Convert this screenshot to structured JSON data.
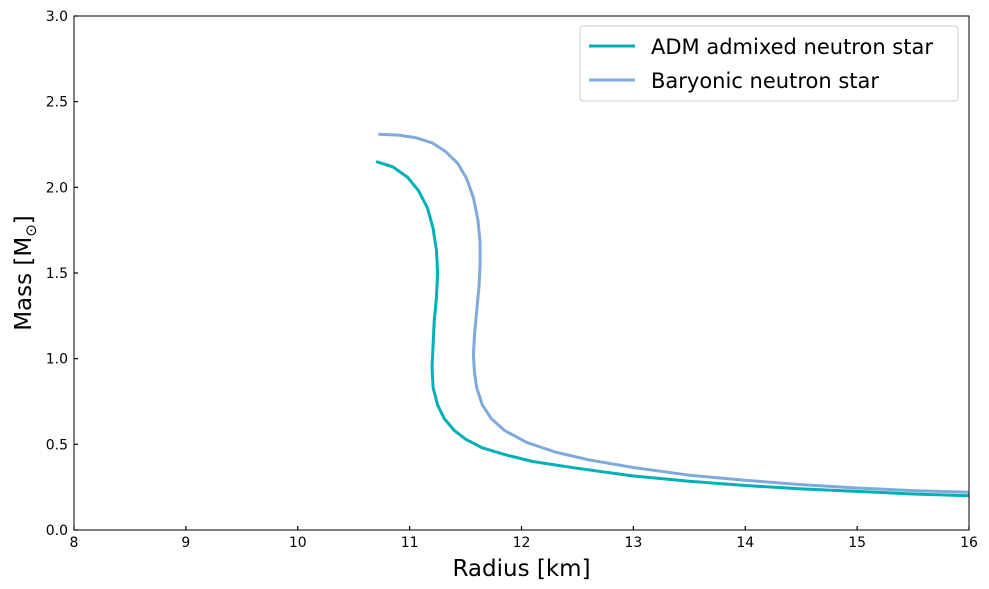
{
  "chart_data": {
    "type": "line",
    "title": "",
    "xlabel": "Radius [km]",
    "ylabel_text": "Mass [M",
    "ylabel_symbol": "⊙",
    "ylabel_close": "]",
    "xlim": [
      8,
      16
    ],
    "ylim": [
      0.0,
      3.0
    ],
    "x_ticks": [
      8,
      9,
      10,
      11,
      12,
      13,
      14,
      15,
      16
    ],
    "y_ticks": [
      0.0,
      0.5,
      1.0,
      1.5,
      2.0,
      2.5,
      3.0
    ],
    "x_tick_labels": [
      "8",
      "9",
      "10",
      "11",
      "12",
      "13",
      "14",
      "15",
      "16"
    ],
    "y_tick_labels": [
      "0.0",
      "0.5",
      "1.0",
      "1.5",
      "2.0",
      "2.5",
      "3.0"
    ],
    "grid": false,
    "legend_position": "top-right",
    "series": [
      {
        "name": "ADM admixed neutron star",
        "color": "#00b0b9",
        "points": [
          [
            10.7,
            2.15
          ],
          [
            10.85,
            2.12
          ],
          [
            10.98,
            2.06
          ],
          [
            11.08,
            1.98
          ],
          [
            11.16,
            1.88
          ],
          [
            11.21,
            1.76
          ],
          [
            11.24,
            1.63
          ],
          [
            11.25,
            1.5
          ],
          [
            11.24,
            1.36
          ],
          [
            11.22,
            1.22
          ],
          [
            11.21,
            1.08
          ],
          [
            11.2,
            0.95
          ],
          [
            11.21,
            0.83
          ],
          [
            11.25,
            0.73
          ],
          [
            11.31,
            0.65
          ],
          [
            11.4,
            0.58
          ],
          [
            11.5,
            0.53
          ],
          [
            11.65,
            0.48
          ],
          [
            11.85,
            0.44
          ],
          [
            12.1,
            0.4
          ],
          [
            12.5,
            0.36
          ],
          [
            13.0,
            0.315
          ],
          [
            13.5,
            0.285
          ],
          [
            14.0,
            0.26
          ],
          [
            14.5,
            0.24
          ],
          [
            15.0,
            0.225
          ],
          [
            15.5,
            0.21
          ],
          [
            16.0,
            0.2
          ]
        ]
      },
      {
        "name": "Baryonic neutron star",
        "color": "#7faadb",
        "points": [
          [
            10.72,
            2.31
          ],
          [
            10.9,
            2.305
          ],
          [
            11.05,
            2.29
          ],
          [
            11.2,
            2.26
          ],
          [
            11.32,
            2.21
          ],
          [
            11.43,
            2.14
          ],
          [
            11.51,
            2.05
          ],
          [
            11.57,
            1.94
          ],
          [
            11.61,
            1.81
          ],
          [
            11.63,
            1.68
          ],
          [
            11.63,
            1.55
          ],
          [
            11.62,
            1.42
          ],
          [
            11.6,
            1.28
          ],
          [
            11.58,
            1.14
          ],
          [
            11.57,
            1.02
          ],
          [
            11.58,
            0.92
          ],
          [
            11.6,
            0.83
          ],
          [
            11.65,
            0.73
          ],
          [
            11.73,
            0.65
          ],
          [
            11.85,
            0.58
          ],
          [
            12.05,
            0.51
          ],
          [
            12.3,
            0.455
          ],
          [
            12.6,
            0.41
          ],
          [
            13.0,
            0.365
          ],
          [
            13.5,
            0.32
          ],
          [
            14.0,
            0.29
          ],
          [
            14.5,
            0.265
          ],
          [
            15.0,
            0.245
          ],
          [
            15.5,
            0.23
          ],
          [
            16.0,
            0.22
          ]
        ]
      }
    ]
  }
}
